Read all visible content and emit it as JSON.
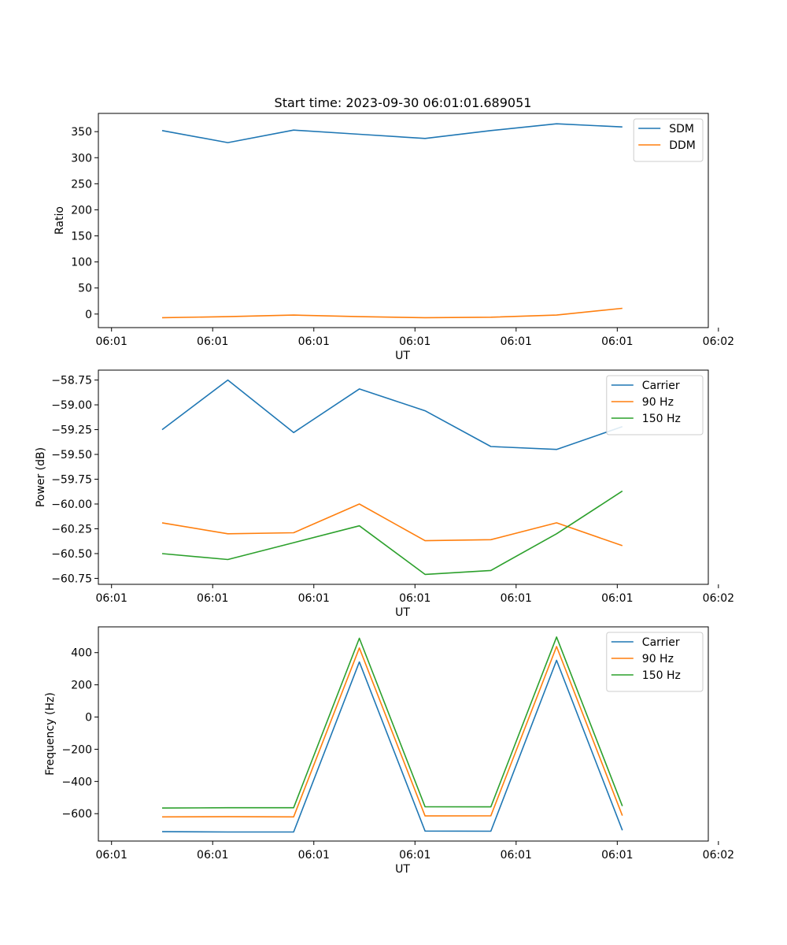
{
  "figure": {
    "title": "Start time: 2023-09-30 06:01:01.689051"
  },
  "colors": {
    "series_1": "#1f77b4",
    "series_2": "#ff7f0e",
    "series_3": "#2ca02c",
    "axes": "#000000",
    "legend_border": "#cccccc"
  },
  "chart_data": [
    {
      "type": "line",
      "title": "Start time: 2023-09-30 06:01:01.689051",
      "xlabel": "UT",
      "ylabel": "Ratio",
      "xlim": [
        -0.13,
        5.9
      ],
      "ylim": [
        -26,
        385
      ],
      "x": [
        0.5,
        1.15,
        1.8,
        2.45,
        3.1,
        3.75,
        4.4,
        5.05
      ],
      "x_ticks": [
        0,
        1,
        2,
        3,
        4,
        5,
        6
      ],
      "x_tick_labels": [
        "06:01",
        "06:01",
        "06:01",
        "06:01",
        "06:01",
        "06:01",
        "06:02"
      ],
      "y_ticks": [
        0,
        50,
        100,
        150,
        200,
        250,
        300,
        350
      ],
      "y_tick_labels": [
        "0",
        "50",
        "100",
        "150",
        "200",
        "250",
        "300",
        "350"
      ],
      "legend": "top-right",
      "series": [
        {
          "name": "SDM",
          "values": [
            352,
            329,
            353,
            345,
            337,
            352,
            365,
            359
          ]
        },
        {
          "name": "DDM",
          "values": [
            -7,
            -5,
            -2,
            -5,
            -7,
            -6,
            -2,
            11
          ]
        }
      ]
    },
    {
      "type": "line",
      "xlabel": "UT",
      "ylabel": "Power (dB)",
      "xlim": [
        -0.13,
        5.9
      ],
      "ylim": [
        -60.81,
        -58.65
      ],
      "x": [
        0.5,
        1.15,
        1.8,
        2.45,
        3.1,
        3.75,
        4.4,
        5.05
      ],
      "x_ticks": [
        0,
        1,
        2,
        3,
        4,
        5,
        6
      ],
      "x_tick_labels": [
        "06:01",
        "06:01",
        "06:01",
        "06:01",
        "06:01",
        "06:01",
        "06:02"
      ],
      "y_ticks": [
        -60.75,
        -60.5,
        -60.25,
        -60.0,
        -59.75,
        -59.5,
        -59.25,
        -59.0,
        -58.75
      ],
      "y_tick_labels": [
        "−60.75",
        "−60.50",
        "−60.25",
        "−60.00",
        "−59.75",
        "−59.50",
        "−59.25",
        "−59.00",
        "−58.75"
      ],
      "legend": "top-right",
      "series": [
        {
          "name": "Carrier",
          "values": [
            -59.25,
            -58.75,
            -59.28,
            -58.84,
            -59.06,
            -59.42,
            -59.45,
            -59.22
          ]
        },
        {
          "name": "90 Hz",
          "values": [
            -60.19,
            -60.3,
            -60.29,
            -60.0,
            -60.37,
            -60.36,
            -60.19,
            -60.42
          ]
        },
        {
          "name": "150 Hz",
          "values": [
            -60.5,
            -60.56,
            -60.39,
            -60.22,
            -60.71,
            -60.67,
            -60.3,
            -59.87
          ]
        }
      ]
    },
    {
      "type": "line",
      "xlabel": "UT",
      "ylabel": "Frequency (Hz)",
      "xlim": [
        -0.13,
        5.9
      ],
      "ylim": [
        -770,
        560
      ],
      "x": [
        0.5,
        1.15,
        1.8,
        2.45,
        3.1,
        3.75,
        4.4,
        5.05
      ],
      "x_ticks": [
        0,
        1,
        2,
        3,
        4,
        5,
        6
      ],
      "x_tick_labels": [
        "06:01",
        "06:01",
        "06:01",
        "06:01",
        "06:01",
        "06:01",
        "06:02"
      ],
      "y_ticks": [
        -600,
        -400,
        -200,
        0,
        200,
        400
      ],
      "y_tick_labels": [
        "−600",
        "−400",
        "−200",
        "0",
        "200",
        "400"
      ],
      "legend": "top-right",
      "series": [
        {
          "name": "Carrier",
          "values": [
            -712,
            -714,
            -714,
            342,
            -708,
            -709,
            352,
            -703
          ]
        },
        {
          "name": "90 Hz",
          "values": [
            -620,
            -619,
            -620,
            429,
            -614,
            -613,
            438,
            -612
          ]
        },
        {
          "name": "150 Hz",
          "values": [
            -565,
            -563,
            -563,
            489,
            -557,
            -558,
            497,
            -553
          ]
        }
      ]
    }
  ]
}
